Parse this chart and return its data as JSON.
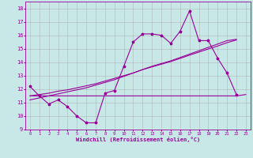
{
  "xlabel": "Windchill (Refroidissement éolien,°C)",
  "bg_color": "#c8e8e8",
  "line_color": "#990099",
  "x_data": [
    0,
    1,
    2,
    3,
    4,
    5,
    6,
    7,
    8,
    9,
    10,
    11,
    12,
    13,
    14,
    15,
    16,
    17,
    18,
    19,
    20,
    21,
    22,
    23
  ],
  "y_wavy": [
    12.2,
    11.5,
    10.9,
    11.2,
    10.7,
    10.0,
    9.5,
    9.5,
    11.7,
    11.9,
    13.7,
    15.5,
    16.1,
    16.1,
    16.0,
    15.4,
    16.3,
    17.8,
    15.6,
    15.6,
    14.3,
    13.2,
    11.6,
    null
  ],
  "y_flat": [
    11.5,
    11.5,
    11.5,
    11.5,
    11.5,
    11.5,
    11.5,
    11.5,
    11.5,
    11.5,
    11.5,
    11.5,
    11.5,
    11.5,
    11.5,
    11.5,
    11.5,
    11.5,
    11.5,
    11.5,
    11.5,
    11.5,
    11.5,
    11.6
  ],
  "y_trend1": [
    11.2,
    11.35,
    11.5,
    11.65,
    11.8,
    11.95,
    12.1,
    12.3,
    12.5,
    12.7,
    12.95,
    13.2,
    13.45,
    13.7,
    13.9,
    14.1,
    14.35,
    14.6,
    14.85,
    15.1,
    15.35,
    15.6,
    15.7,
    null
  ],
  "y_trend2": [
    11.5,
    11.6,
    11.7,
    11.85,
    11.95,
    12.1,
    12.25,
    12.4,
    12.6,
    12.8,
    13.0,
    13.2,
    13.45,
    13.65,
    13.85,
    14.05,
    14.28,
    14.52,
    14.75,
    14.98,
    15.2,
    15.45,
    15.65,
    null
  ],
  "ylim": [
    9,
    18.5
  ],
  "xlim": [
    -0.5,
    23.5
  ],
  "yticks": [
    9,
    10,
    11,
    12,
    13,
    14,
    15,
    16,
    17,
    18
  ],
  "xticks": [
    0,
    1,
    2,
    3,
    4,
    5,
    6,
    7,
    8,
    9,
    10,
    11,
    12,
    13,
    14,
    15,
    16,
    17,
    18,
    19,
    20,
    21,
    22,
    23
  ]
}
